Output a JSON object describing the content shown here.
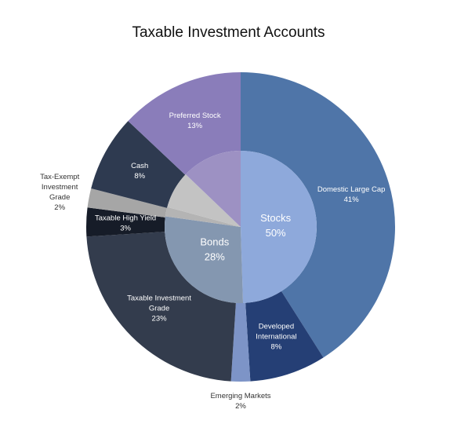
{
  "chart_data": {
    "type": "pie",
    "title": "Taxable Investment Accounts",
    "inner_ring": [
      {
        "name": "Stocks",
        "value": 50,
        "label": "50%",
        "color": "#8ea9db"
      },
      {
        "name": "Bonds",
        "value": 28,
        "label": "28%",
        "color": "#8497b0"
      },
      {
        "name": "",
        "value": 2,
        "label": "",
        "color": "#b4b4b4"
      },
      {
        "name": "",
        "value": 8,
        "label": "",
        "color": "#c3c3c3"
      },
      {
        "name": "",
        "value": 13,
        "label": "",
        "color": "#9d91c3"
      }
    ],
    "outer_ring": [
      {
        "name": "Domestic Large Cap",
        "value": 41,
        "label": "41%",
        "color": "#4f75a8"
      },
      {
        "name": "Developed International",
        "value": 8,
        "label": "8%",
        "color": "#253f75"
      },
      {
        "name": "Emerging Markets",
        "value": 2,
        "label": "2%",
        "color": "#7d94c7"
      },
      {
        "name": "Taxable Investment Grade",
        "value": 23,
        "label": "23%",
        "color": "#333c4d"
      },
      {
        "name": "Taxable High Yield",
        "value": 3,
        "label": "3%",
        "color": "#161c28"
      },
      {
        "name": "Tax-Exempt Investment Grade",
        "value": 2,
        "label": "2%",
        "color": "#a6a6a6"
      },
      {
        "name": "Cash",
        "value": 8,
        "label": "8%",
        "color": "#2e3a50"
      },
      {
        "name": "Preferred Stock",
        "value": 13,
        "label": "13%",
        "color": "#8a7dba"
      }
    ]
  }
}
